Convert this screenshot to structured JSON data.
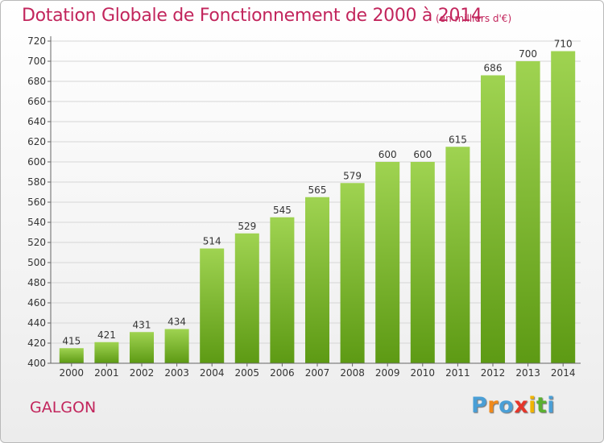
{
  "title": "Dotation Globale de Fonctionnement de 2000 à 2014",
  "subtitle": "(en milliers d'€)",
  "place": "GALGON",
  "logo": {
    "text": "Proxiti",
    "letter_colors": [
      "#4a9fd6",
      "#f08a1c",
      "#4a9fd6",
      "#e5352a",
      "#f0b400",
      "#5bb030",
      "#4a9fd6"
    ]
  },
  "colors": {
    "title": "#c2255c",
    "bar_top": "#9fd351",
    "bar_bottom": "#5d9a14"
  },
  "chart_data": {
    "type": "bar",
    "categories": [
      "2000",
      "2001",
      "2002",
      "2003",
      "2004",
      "2005",
      "2006",
      "2007",
      "2008",
      "2009",
      "2010",
      "2011",
      "2012",
      "2013",
      "2014"
    ],
    "values": [
      415,
      421,
      431,
      434,
      514,
      529,
      545,
      565,
      579,
      600,
      600,
      615,
      686,
      700,
      710
    ],
    "ylim": [
      400,
      720
    ],
    "yticks": [
      400,
      420,
      440,
      460,
      480,
      500,
      520,
      540,
      560,
      580,
      600,
      620,
      640,
      660,
      680,
      700,
      720
    ],
    "grid": true
  }
}
